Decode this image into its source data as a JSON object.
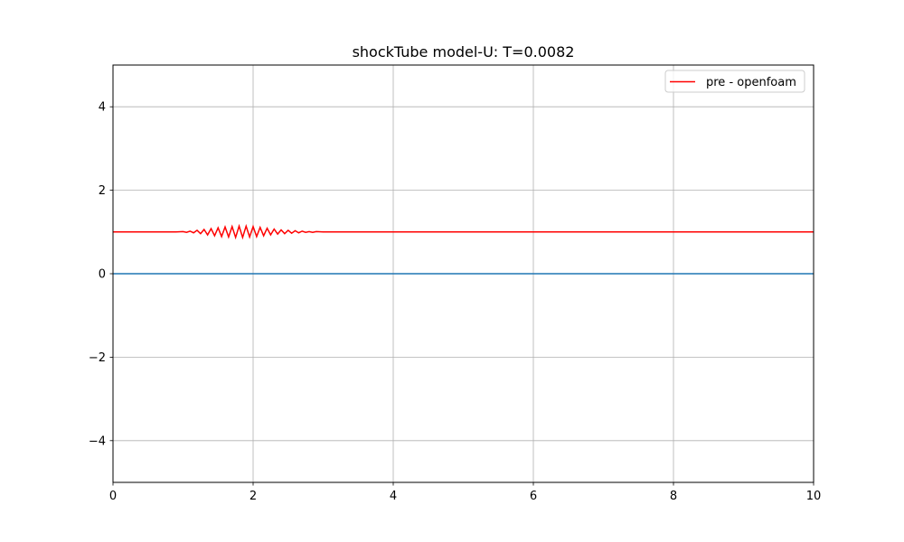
{
  "chart_data": {
    "type": "line",
    "title": "shockTube model-U: T=0.0082",
    "xlabel": "",
    "ylabel": "",
    "xlim": [
      0,
      10
    ],
    "ylim": [
      -5,
      5
    ],
    "xticks": [
      0,
      2,
      4,
      6,
      8,
      10
    ],
    "xtick_labels": [
      "0",
      "2",
      "4",
      "6",
      "8",
      "10"
    ],
    "yticks": [
      -4,
      -2,
      0,
      2,
      4
    ],
    "ytick_labels": [
      "−4",
      "−2",
      "0",
      "2",
      "4"
    ],
    "grid": true,
    "legend_position": "top-right",
    "series": [
      {
        "name": "pre - openfoam",
        "color": "#ff0000",
        "x": [
          0.0,
          0.9,
          1.0,
          1.05,
          1.1,
          1.15,
          1.2,
          1.25,
          1.3,
          1.35,
          1.4,
          1.45,
          1.5,
          1.55,
          1.6,
          1.65,
          1.7,
          1.75,
          1.8,
          1.85,
          1.9,
          1.95,
          2.0,
          2.05,
          2.1,
          2.15,
          2.2,
          2.25,
          2.3,
          2.35,
          2.4,
          2.45,
          2.5,
          2.55,
          2.6,
          2.65,
          2.7,
          2.75,
          2.8,
          2.85,
          2.9,
          3.0,
          3.2,
          10.0
        ],
        "y": [
          1.0,
          1.0,
          1.01,
          0.99,
          1.02,
          0.98,
          1.04,
          0.96,
          1.06,
          0.93,
          1.08,
          0.91,
          1.1,
          0.89,
          1.12,
          0.88,
          1.13,
          0.87,
          1.14,
          0.87,
          1.14,
          0.88,
          1.13,
          0.89,
          1.11,
          0.91,
          1.09,
          0.93,
          1.07,
          0.95,
          1.05,
          0.96,
          1.04,
          0.97,
          1.03,
          0.98,
          1.02,
          0.99,
          1.01,
          0.99,
          1.01,
          1.0,
          1.0,
          1.0
        ]
      },
      {
        "name": "",
        "color": "#1f77b4",
        "x": [
          0,
          10
        ],
        "y": [
          0,
          0
        ]
      }
    ]
  }
}
